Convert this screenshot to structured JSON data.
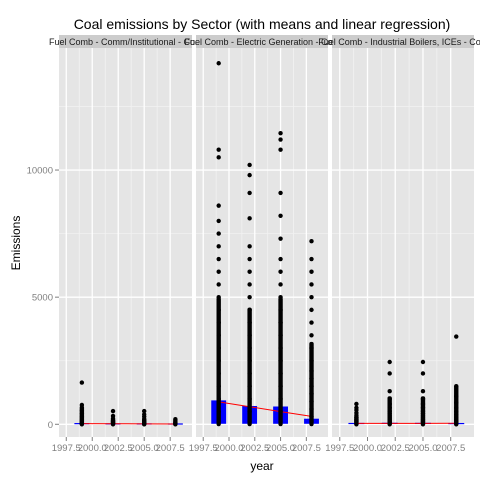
{
  "chart_data": {
    "type": "scatter",
    "title": "Coal emissions by Sector (with means and linear regression)",
    "xlabel": "year",
    "ylabel": "Emissions",
    "x_ticks": [
      1997.5,
      2000.0,
      2002.5,
      2005.0,
      2007.5
    ],
    "x_tick_labels": [
      "1997.5",
      "2000.0",
      "2002.5",
      "2005.0",
      "2007.5"
    ],
    "y_ticks": [
      0,
      5000,
      10000
    ],
    "y_tick_labels": [
      "0",
      "5000",
      "10000"
    ],
    "xlim": [
      1996.8,
      2009.6
    ],
    "ylim": [
      -500,
      14800
    ],
    "grid": true,
    "colors": {
      "panel_bg": "#e5e5e5",
      "grid_major": "#ffffff",
      "grid_minor": "#f2f2f2",
      "points": "#000000",
      "mean_bars": "#0000ff",
      "regression": "#ff0000",
      "strip_text": "#1a1a1a",
      "axis_text": "#7f7f7f"
    },
    "years": [
      1999,
      2002,
      2005,
      2008
    ],
    "panels": [
      {
        "label": "Fuel Comb - Comm/Institutional - Coal",
        "means": [
          30,
          20,
          18,
          15
        ],
        "regression": [
          28,
          23,
          18,
          13
        ],
        "points": {
          "1999": [
            0,
            20,
            40,
            60,
            90,
            130,
            180,
            250,
            320,
            420,
            540,
            760,
            1640
          ],
          "2002": [
            0,
            15,
            30,
            50,
            80,
            120,
            170,
            230,
            330,
            520
          ],
          "2005": [
            0,
            10,
            25,
            45,
            70,
            100,
            150,
            210,
            300,
            390,
            520
          ],
          "2008": [
            0,
            10,
            20,
            35,
            55,
            80,
            110,
            150,
            200
          ]
        }
      },
      {
        "label": "Fuel Comb - Electric Generation - Coal",
        "means": [
          920,
          700,
          680,
          200
        ],
        "regression": [
          880,
          690,
          500,
          310
        ],
        "points": {
          "1999": [
            10,
            500,
            1000,
            1500,
            2000,
            2500,
            3000,
            3500,
            4000,
            4500,
            5000,
            5500,
            6000,
            6500,
            7000,
            7500,
            8000,
            8600,
            10500,
            10800,
            14200
          ],
          "2002": [
            10,
            500,
            1000,
            1500,
            2000,
            2500,
            3000,
            3500,
            4000,
            4500,
            5000,
            5500,
            6000,
            6500,
            7000,
            8100,
            9100,
            9800,
            10200
          ],
          "2005": [
            10,
            500,
            1000,
            1500,
            2000,
            2500,
            3000,
            3500,
            4000,
            4500,
            5000,
            5500,
            6000,
            6500,
            7300,
            8200,
            9100,
            10800,
            11200,
            11450
          ],
          "2008": [
            10,
            300,
            600,
            900,
            1200,
            1500,
            1800,
            2100,
            2500,
            3000,
            3500,
            4000,
            4500,
            5000,
            5500,
            6000,
            6500,
            7200
          ]
        }
      },
      {
        "label": "Fuel Comb - Industrial Boilers, ICEs - Coal",
        "means": [
          35,
          40,
          38,
          32
        ],
        "regression": [
          36,
          37,
          38,
          39
        ],
        "points": {
          "1999": [
            0,
            20,
            50,
            100,
            150,
            200,
            280,
            360,
            450,
            560,
            650,
            800
          ],
          "2002": [
            0,
            30,
            70,
            120,
            180,
            250,
            330,
            420,
            520,
            650,
            800,
            1000,
            1300,
            2000,
            2450
          ],
          "2005": [
            0,
            30,
            70,
            120,
            180,
            250,
            330,
            420,
            520,
            650,
            800,
            1000,
            1300,
            2000,
            2450
          ],
          "2008": [
            0,
            20,
            50,
            90,
            140,
            200,
            280,
            380,
            500,
            650,
            850,
            1100,
            1500,
            3450
          ]
        }
      }
    ]
  }
}
